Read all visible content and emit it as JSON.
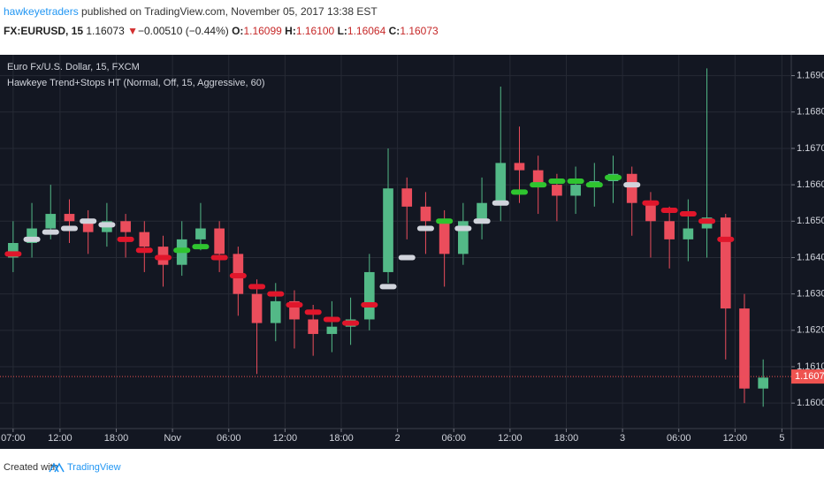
{
  "header": {
    "author": "hawkeyetraders",
    "published": " published on TradingView.com, November 05, 2017 13:38 EST",
    "symbol": "FX:EURUSD, 15",
    "price": "1.16073",
    "arrow": "▼",
    "change": "−0.00510 (−0.44%)",
    "o_label": "O:",
    "o": "1.16099",
    "h_label": "H:",
    "h": "1.16100",
    "l_label": "L:",
    "l": "1.16064",
    "c_label": "C:",
    "c": "1.16073"
  },
  "chart_data": {
    "type": "candlestick",
    "legend": [
      "Euro Fx/U.S. Dollar, 15, FXCM",
      "Hawkeye Trend+Stops HT (Normal, Off, 15, Aggressive, 60)"
    ],
    "x": [
      0,
      2,
      4,
      6,
      8,
      10,
      12,
      14,
      16,
      18,
      20,
      22,
      24,
      26,
      28,
      30,
      32,
      34,
      36,
      38,
      40,
      42,
      44,
      46,
      48,
      50,
      52,
      54,
      56,
      58,
      60,
      62,
      64,
      66,
      68,
      70,
      72,
      74,
      76,
      78,
      80
    ],
    "open": [
      1.164,
      1.1644,
      1.1648,
      1.1652,
      1.165,
      1.1647,
      1.165,
      1.1647,
      1.1643,
      1.1638,
      1.1645,
      1.1648,
      1.1641,
      1.163,
      1.1622,
      1.1628,
      1.1623,
      1.1619,
      1.1621,
      1.1623,
      1.1636,
      1.1659,
      1.1654,
      1.165,
      1.1641,
      1.165,
      1.1655,
      1.1666,
      1.1664,
      1.166,
      1.1657,
      1.166,
      1.1661,
      1.1663,
      1.1655,
      1.165,
      1.1645,
      1.1648,
      1.1651,
      1.1626,
      1.1604
    ],
    "high": [
      1.165,
      1.1655,
      1.166,
      1.1656,
      1.1653,
      1.1655,
      1.1652,
      1.165,
      1.1646,
      1.165,
      1.1655,
      1.165,
      1.1643,
      1.1634,
      1.1633,
      1.1631,
      1.1627,
      1.1628,
      1.1629,
      1.1641,
      1.167,
      1.1662,
      1.1658,
      1.1653,
      1.1655,
      1.1662,
      1.1687,
      1.1676,
      1.1668,
      1.1663,
      1.1665,
      1.1666,
      1.1668,
      1.1665,
      1.1658,
      1.1654,
      1.1656,
      1.1692,
      1.1652,
      1.163,
      1.1612
    ],
    "low": [
      1.1636,
      1.164,
      1.1645,
      1.1644,
      1.1641,
      1.1643,
      1.164,
      1.1636,
      1.1632,
      1.1635,
      1.1642,
      1.1636,
      1.1624,
      1.1608,
      1.1617,
      1.1615,
      1.1613,
      1.1614,
      1.1616,
      1.162,
      1.1633,
      1.1645,
      1.1641,
      1.1632,
      1.1638,
      1.1645,
      1.165,
      1.1655,
      1.1652,
      1.165,
      1.1652,
      1.1654,
      1.1655,
      1.1646,
      1.164,
      1.1637,
      1.1639,
      1.164,
      1.1612,
      1.16,
      1.1599
    ],
    "close": [
      1.1644,
      1.1648,
      1.1652,
      1.165,
      1.1647,
      1.165,
      1.1647,
      1.1643,
      1.1638,
      1.1645,
      1.1648,
      1.1641,
      1.163,
      1.1622,
      1.1628,
      1.1623,
      1.1619,
      1.1621,
      1.1623,
      1.1636,
      1.1659,
      1.1654,
      1.165,
      1.1641,
      1.165,
      1.1655,
      1.1666,
      1.1664,
      1.166,
      1.1657,
      1.166,
      1.1661,
      1.1663,
      1.1655,
      1.165,
      1.1645,
      1.1648,
      1.1651,
      1.1626,
      1.1604,
      1.1607
    ],
    "up_color": "#53b987",
    "down_color": "#eb4d5c",
    "indicator": {
      "values": [
        1.1641,
        1.1645,
        1.1647,
        1.1648,
        1.165,
        1.1649,
        1.1645,
        1.1642,
        1.164,
        1.1642,
        1.1643,
        1.164,
        1.1635,
        1.1632,
        1.163,
        1.1627,
        1.1625,
        1.1623,
        1.1622,
        1.1627,
        1.1632,
        1.164,
        1.1648,
        1.165,
        1.1648,
        1.165,
        1.1655,
        1.1658,
        1.166,
        1.1661,
        1.1661,
        1.166,
        1.1662,
        1.166,
        1.1655,
        1.1653,
        1.1652,
        1.165,
        1.1645,
        null,
        null
      ],
      "colors": [
        "#e0162b",
        "#d1d4dc",
        "#d1d4dc",
        "#d1d4dc",
        "#d1d4dc",
        "#d1d4dc",
        "#e0162b",
        "#e0162b",
        "#e0162b",
        "#2fc42f",
        "#2fc42f",
        "#e0162b",
        "#e0162b",
        "#e0162b",
        "#e0162b",
        "#e0162b",
        "#e0162b",
        "#e0162b",
        "#e0162b",
        "#e0162b",
        "#d1d4dc",
        "#d1d4dc",
        "#d1d4dc",
        "#2fc42f",
        "#d1d4dc",
        "#d1d4dc",
        "#d1d4dc",
        "#2fc42f",
        "#2fc42f",
        "#2fc42f",
        "#2fc42f",
        "#2fc42f",
        "#2fc42f",
        "#d1d4dc",
        "#e0162b",
        "#e0162b",
        "#e0162b",
        "#e0162b",
        "#e0162b",
        null,
        null
      ]
    },
    "xlim": [
      -1.4,
      83
    ],
    "xticks": [
      {
        "value": 0,
        "label": "07:00"
      },
      {
        "value": 5,
        "label": "12:00"
      },
      {
        "value": 11,
        "label": "18:00"
      },
      {
        "value": 17,
        "label": "Nov"
      },
      {
        "value": 23,
        "label": "06:00"
      },
      {
        "value": 29,
        "label": "12:00"
      },
      {
        "value": 35,
        "label": "18:00"
      },
      {
        "value": 41,
        "label": "2"
      },
      {
        "value": 47,
        "label": "06:00"
      },
      {
        "value": 53,
        "label": "12:00"
      },
      {
        "value": 59,
        "label": "18:00"
      },
      {
        "value": 65,
        "label": "3"
      },
      {
        "value": 71,
        "label": "06:00"
      },
      {
        "value": 77,
        "label": "12:00"
      },
      {
        "value": 82,
        "label": "5"
      }
    ],
    "ylim": [
      1.1593,
      1.1695
    ],
    "yticks": [
      {
        "value": 1.16,
        "label": "1.16000"
      },
      {
        "value": 1.161,
        "label": "1.16100"
      },
      {
        "value": 1.162,
        "label": "1.16200"
      },
      {
        "value": 1.163,
        "label": "1.16300"
      },
      {
        "value": 1.164,
        "label": "1.16400"
      },
      {
        "value": 1.165,
        "label": "1.16500"
      },
      {
        "value": 1.166,
        "label": "1.16600"
      },
      {
        "value": 1.167,
        "label": "1.16700"
      },
      {
        "value": 1.168,
        "label": "1.16800"
      },
      {
        "value": 1.169,
        "label": "1.16900"
      }
    ],
    "last": {
      "value": 1.16073,
      "label": "1.16073"
    },
    "last_color": "#ef5350",
    "grid": true
  },
  "footer": {
    "created": "Created with",
    "brand": "TradingView"
  }
}
